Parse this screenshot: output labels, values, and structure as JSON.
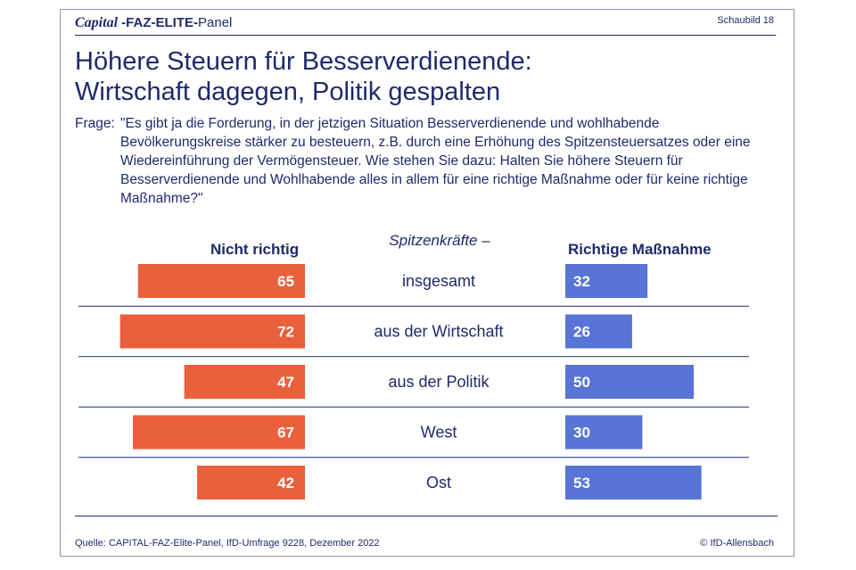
{
  "header": {
    "brand": "Capital",
    "panel_bold": " -FAZ-ELITE-",
    "panel_suffix": "Panel",
    "sheet": "Schaubild 18"
  },
  "title": {
    "line1": "Höhere Steuern für Besserverdienende:",
    "line2": "Wirtschaft dagegen, Politik gespalten"
  },
  "question": {
    "label": "Frage:",
    "text": "\"Es gibt ja die Forderung, in der jetzigen Situation Besserverdienende und wohlhabende Bevölkerungskreise stärker zu besteuern, z.B. durch eine Erhöhung des Spitzensteuer­satzes oder eine Wiedereinführung der Vermögensteuer. Wie stehen Sie dazu: Halten Sie höhere Steuern für Besserverdienende und Wohlhabende alles in allem für eine richtige Maßnahme oder für keine richtige Maßnahme?\""
  },
  "footer": {
    "source": "Quelle: CAPITAL-FAZ-Elite-Panel, IfD-Umfrage 9228, Dezember 2022",
    "credit": "© IfD-Allensbach"
  },
  "chart_data": {
    "type": "bar",
    "layout": "diverging-butterfly",
    "category_header": "Spitzenkräfte –",
    "categories": [
      "insgesamt",
      "aus der Wirtschaft",
      "aus der Politik",
      "West",
      "Ost"
    ],
    "series": [
      {
        "name": "Nicht richtig",
        "color": "#ea5f3c",
        "values": [
          65,
          72,
          47,
          67,
          42
        ]
      },
      {
        "name": "Richtige Maßnahme",
        "color": "#5774d6",
        "values": [
          32,
          26,
          50,
          30,
          53
        ]
      }
    ],
    "unit": "percent"
  }
}
